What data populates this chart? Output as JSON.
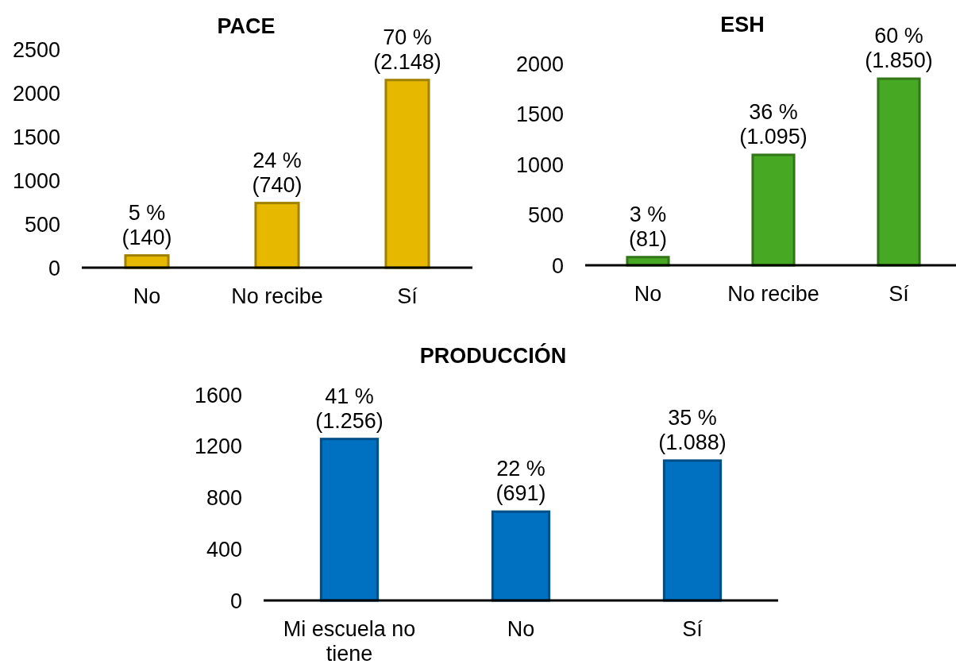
{
  "chart_data": [
    {
      "type": "bar",
      "title": "PACE",
      "categories": [
        "No",
        "No recibe",
        "Sí"
      ],
      "values": [
        140,
        740,
        2148
      ],
      "value_labels": [
        "5 %\n(140)",
        "24 %\n(740)",
        "70 %\n(2.148)"
      ],
      "color": "#e6b800",
      "ylim": [
        0,
        2500
      ],
      "yticks": [
        0,
        500,
        1000,
        1500,
        2000,
        2500
      ]
    },
    {
      "type": "bar",
      "title": "ESH",
      "categories": [
        "No",
        "No recibe",
        "Sí"
      ],
      "values": [
        81,
        1095,
        1850
      ],
      "value_labels": [
        "3 %\n(81)",
        "36 %\n(1.095)",
        "60 %\n(1.850)"
      ],
      "color": "#47a823",
      "ylim": [
        0,
        2000
      ],
      "yticks": [
        0,
        500,
        1000,
        1500,
        2000
      ]
    },
    {
      "type": "bar",
      "title": "PRODUCCIÓN",
      "categories": [
        "Mi escuela no tiene",
        "No",
        "Sí"
      ],
      "values": [
        1256,
        691,
        1088
      ],
      "value_labels": [
        "41 %\n(1.256)",
        "22 %\n(691)",
        "35 %\n(1.088)"
      ],
      "color": "#0070c0",
      "ylim": [
        0,
        1600
      ],
      "yticks": [
        0,
        400,
        800,
        1200,
        1600
      ]
    }
  ]
}
